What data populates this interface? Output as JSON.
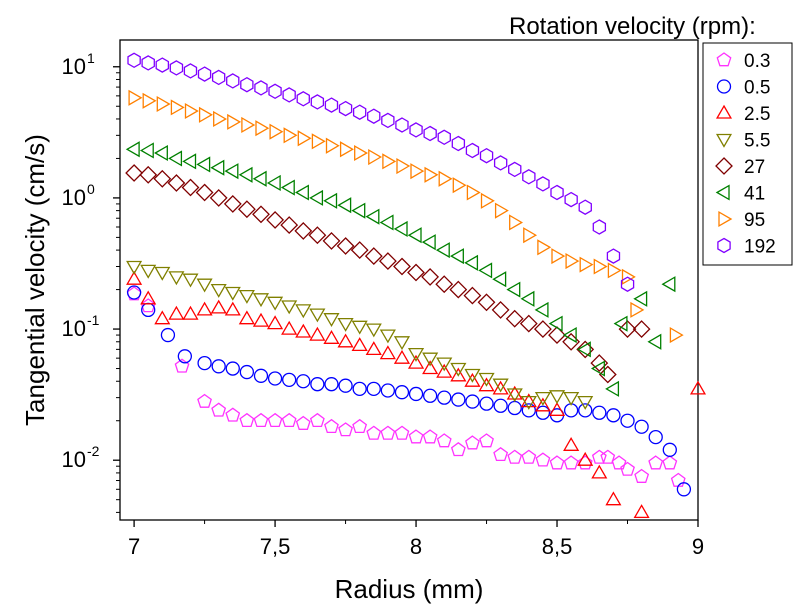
{
  "chart_data": {
    "type": "scatter",
    "title": "",
    "xlabel": "Radius (mm)",
    "ylabel": "Tangential velocity (cm/s)",
    "xlim": [
      6.95,
      9.0
    ],
    "ylim": [
      0.0035,
      16
    ],
    "yscale": "log",
    "grid": false,
    "x_ticks": [
      {
        "value": 7,
        "label": "7"
      },
      {
        "value": 7.5,
        "label": "7,5"
      },
      {
        "value": 8,
        "label": "8"
      },
      {
        "value": 8.5,
        "label": "8,5"
      },
      {
        "value": 9,
        "label": "9"
      }
    ],
    "y_ticks": [
      {
        "value": 0.01,
        "base": "10",
        "exp": "-2"
      },
      {
        "value": 0.1,
        "base": "10",
        "exp": "-1"
      },
      {
        "value": 1,
        "base": "10",
        "exp": "0"
      },
      {
        "value": 10,
        "base": "10",
        "exp": "1"
      }
    ],
    "legend": {
      "title": "Rotation velocity (rpm):",
      "placement": "right"
    },
    "series": [
      {
        "name": "0.3",
        "marker": "pentagon",
        "color": "#ff33ff",
        "points": [
          [
            7,
            0.185
          ],
          [
            7.05,
            0.15
          ],
          [
            7.17,
            0.052
          ],
          [
            7.25,
            0.028
          ],
          [
            7.3,
            0.024
          ],
          [
            7.35,
            0.022
          ],
          [
            7.4,
            0.02
          ],
          [
            7.45,
            0.02
          ],
          [
            7.5,
            0.02
          ],
          [
            7.55,
            0.02
          ],
          [
            7.6,
            0.019
          ],
          [
            7.65,
            0.02
          ],
          [
            7.7,
            0.018
          ],
          [
            7.75,
            0.017
          ],
          [
            7.8,
            0.018
          ],
          [
            7.85,
            0.016
          ],
          [
            7.9,
            0.016
          ],
          [
            7.95,
            0.016
          ],
          [
            8.0,
            0.015
          ],
          [
            8.05,
            0.015
          ],
          [
            8.1,
            0.014
          ],
          [
            8.15,
            0.012
          ],
          [
            8.2,
            0.0135
          ],
          [
            8.25,
            0.014
          ],
          [
            8.3,
            0.011
          ],
          [
            8.35,
            0.0105
          ],
          [
            8.4,
            0.0105
          ],
          [
            8.45,
            0.01
          ],
          [
            8.5,
            0.0095
          ],
          [
            8.55,
            0.0095
          ],
          [
            8.6,
            0.0095
          ],
          [
            8.65,
            0.0105
          ],
          [
            8.68,
            0.0105
          ],
          [
            8.72,
            0.0095
          ],
          [
            8.75,
            0.0085
          ],
          [
            8.8,
            0.0075
          ],
          [
            8.85,
            0.0095
          ],
          [
            8.9,
            0.0095
          ],
          [
            8.93,
            0.007
          ]
        ]
      },
      {
        "name": "0.5",
        "marker": "circle",
        "color": "#0000ff",
        "points": [
          [
            7,
            0.19
          ],
          [
            7.05,
            0.14
          ],
          [
            7.12,
            0.09
          ],
          [
            7.18,
            0.062
          ],
          [
            7.25,
            0.055
          ],
          [
            7.3,
            0.052
          ],
          [
            7.35,
            0.05
          ],
          [
            7.4,
            0.047
          ],
          [
            7.45,
            0.044
          ],
          [
            7.5,
            0.042
          ],
          [
            7.55,
            0.041
          ],
          [
            7.6,
            0.04
          ],
          [
            7.65,
            0.038
          ],
          [
            7.7,
            0.038
          ],
          [
            7.75,
            0.037
          ],
          [
            7.8,
            0.035
          ],
          [
            7.85,
            0.035
          ],
          [
            7.9,
            0.034
          ],
          [
            7.95,
            0.033
          ],
          [
            8.0,
            0.032
          ],
          [
            8.05,
            0.031
          ],
          [
            8.1,
            0.03
          ],
          [
            8.15,
            0.029
          ],
          [
            8.2,
            0.028
          ],
          [
            8.25,
            0.027
          ],
          [
            8.3,
            0.026
          ],
          [
            8.35,
            0.025
          ],
          [
            8.4,
            0.024
          ],
          [
            8.45,
            0.023
          ],
          [
            8.5,
            0.022
          ],
          [
            8.55,
            0.024
          ],
          [
            8.6,
            0.024
          ],
          [
            8.65,
            0.023
          ],
          [
            8.7,
            0.022
          ],
          [
            8.75,
            0.02
          ],
          [
            8.8,
            0.018
          ],
          [
            8.85,
            0.015
          ],
          [
            8.9,
            0.012
          ],
          [
            8.95,
            0.006
          ]
        ]
      },
      {
        "name": "2.5",
        "marker": "triangle-up",
        "color": "#ff0000",
        "points": [
          [
            7,
            0.24
          ],
          [
            7.05,
            0.17
          ],
          [
            7.1,
            0.12
          ],
          [
            7.15,
            0.13
          ],
          [
            7.2,
            0.13
          ],
          [
            7.25,
            0.14
          ],
          [
            7.3,
            0.145
          ],
          [
            7.35,
            0.14
          ],
          [
            7.4,
            0.12
          ],
          [
            7.45,
            0.115
          ],
          [
            7.5,
            0.11
          ],
          [
            7.55,
            0.1
          ],
          [
            7.6,
            0.095
          ],
          [
            7.65,
            0.09
          ],
          [
            7.7,
            0.085
          ],
          [
            7.75,
            0.08
          ],
          [
            7.8,
            0.075
          ],
          [
            7.85,
            0.07
          ],
          [
            7.9,
            0.065
          ],
          [
            7.95,
            0.06
          ],
          [
            8.0,
            0.055
          ],
          [
            8.05,
            0.05
          ],
          [
            8.1,
            0.047
          ],
          [
            8.15,
            0.044
          ],
          [
            8.2,
            0.04
          ],
          [
            8.25,
            0.037
          ],
          [
            8.3,
            0.035
          ],
          [
            8.35,
            0.032
          ],
          [
            8.4,
            0.028
          ],
          [
            8.45,
            0.026
          ],
          [
            8.5,
            0.024
          ],
          [
            8.55,
            0.013
          ],
          [
            8.6,
            0.01
          ],
          [
            8.65,
            0.008
          ],
          [
            8.7,
            0.005
          ],
          [
            8.8,
            0.004
          ],
          [
            9.0,
            0.035
          ]
        ]
      },
      {
        "name": "5.5",
        "marker": "triangle-down",
        "color": "#808000",
        "points": [
          [
            7,
            0.3
          ],
          [
            7.05,
            0.28
          ],
          [
            7.1,
            0.27
          ],
          [
            7.15,
            0.25
          ],
          [
            7.2,
            0.24
          ],
          [
            7.25,
            0.22
          ],
          [
            7.3,
            0.2
          ],
          [
            7.35,
            0.19
          ],
          [
            7.4,
            0.18
          ],
          [
            7.45,
            0.17
          ],
          [
            7.5,
            0.16
          ],
          [
            7.55,
            0.15
          ],
          [
            7.6,
            0.14
          ],
          [
            7.65,
            0.13
          ],
          [
            7.7,
            0.12
          ],
          [
            7.75,
            0.11
          ],
          [
            7.8,
            0.105
          ],
          [
            7.85,
            0.1
          ],
          [
            7.9,
            0.09
          ],
          [
            7.95,
            0.08
          ],
          [
            8.0,
            0.065
          ],
          [
            8.05,
            0.06
          ],
          [
            8.1,
            0.055
          ],
          [
            8.15,
            0.05
          ],
          [
            8.2,
            0.045
          ],
          [
            8.25,
            0.042
          ],
          [
            8.3,
            0.038
          ],
          [
            8.35,
            0.032
          ],
          [
            8.4,
            0.028
          ],
          [
            8.45,
            0.03
          ],
          [
            8.5,
            0.031
          ],
          [
            8.55,
            0.03
          ],
          [
            8.6,
            0.028
          ]
        ]
      },
      {
        "name": "27",
        "marker": "diamond",
        "color": "#800000",
        "points": [
          [
            7,
            1.55
          ],
          [
            7.05,
            1.5
          ],
          [
            7.1,
            1.4
          ],
          [
            7.15,
            1.3
          ],
          [
            7.2,
            1.2
          ],
          [
            7.25,
            1.1
          ],
          [
            7.3,
            1.0
          ],
          [
            7.35,
            0.9
          ],
          [
            7.4,
            0.82
          ],
          [
            7.45,
            0.75
          ],
          [
            7.5,
            0.68
          ],
          [
            7.55,
            0.62
          ],
          [
            7.6,
            0.56
          ],
          [
            7.65,
            0.52
          ],
          [
            7.7,
            0.47
          ],
          [
            7.75,
            0.43
          ],
          [
            7.8,
            0.4
          ],
          [
            7.85,
            0.36
          ],
          [
            7.9,
            0.33
          ],
          [
            7.95,
            0.3
          ],
          [
            8.0,
            0.27
          ],
          [
            8.05,
            0.25
          ],
          [
            8.1,
            0.22
          ],
          [
            8.15,
            0.2
          ],
          [
            8.2,
            0.18
          ],
          [
            8.25,
            0.16
          ],
          [
            8.3,
            0.14
          ],
          [
            8.35,
            0.12
          ],
          [
            8.4,
            0.11
          ],
          [
            8.45,
            0.1
          ],
          [
            8.5,
            0.09
          ],
          [
            8.55,
            0.08
          ],
          [
            8.6,
            0.07
          ],
          [
            8.65,
            0.055
          ],
          [
            8.68,
            0.045
          ],
          [
            8.75,
            0.1
          ],
          [
            8.8,
            0.1
          ]
        ]
      },
      {
        "name": "41",
        "marker": "triangle-left",
        "color": "#008000",
        "points": [
          [
            7,
            2.35
          ],
          [
            7.05,
            2.3
          ],
          [
            7.1,
            2.2
          ],
          [
            7.15,
            2.0
          ],
          [
            7.2,
            1.9
          ],
          [
            7.25,
            1.8
          ],
          [
            7.3,
            1.7
          ],
          [
            7.35,
            1.6
          ],
          [
            7.4,
            1.5
          ],
          [
            7.45,
            1.4
          ],
          [
            7.5,
            1.3
          ],
          [
            7.55,
            1.2
          ],
          [
            7.6,
            1.1
          ],
          [
            7.65,
            1.0
          ],
          [
            7.7,
            0.95
          ],
          [
            7.75,
            0.88
          ],
          [
            7.8,
            0.8
          ],
          [
            7.85,
            0.72
          ],
          [
            7.9,
            0.65
          ],
          [
            7.95,
            0.58
          ],
          [
            8.0,
            0.52
          ],
          [
            8.05,
            0.46
          ],
          [
            8.1,
            0.4
          ],
          [
            8.15,
            0.36
          ],
          [
            8.2,
            0.32
          ],
          [
            8.25,
            0.28
          ],
          [
            8.3,
            0.24
          ],
          [
            8.35,
            0.2
          ],
          [
            8.4,
            0.17
          ],
          [
            8.45,
            0.14
          ],
          [
            8.5,
            0.11
          ],
          [
            8.55,
            0.09
          ],
          [
            8.6,
            0.07
          ],
          [
            8.65,
            0.05
          ],
          [
            8.7,
            0.035
          ],
          [
            8.73,
            0.11
          ],
          [
            8.8,
            0.17
          ],
          [
            8.85,
            0.08
          ],
          [
            8.9,
            0.22
          ]
        ]
      },
      {
        "name": "95",
        "marker": "triangle-right",
        "color": "#ff8000",
        "points": [
          [
            7,
            5.8
          ],
          [
            7.05,
            5.5
          ],
          [
            7.1,
            5.2
          ],
          [
            7.15,
            4.9
          ],
          [
            7.2,
            4.6
          ],
          [
            7.25,
            4.3
          ],
          [
            7.3,
            4.0
          ],
          [
            7.35,
            3.8
          ],
          [
            7.4,
            3.6
          ],
          [
            7.45,
            3.4
          ],
          [
            7.5,
            3.2
          ],
          [
            7.55,
            3.0
          ],
          [
            7.6,
            2.85
          ],
          [
            7.65,
            2.7
          ],
          [
            7.7,
            2.5
          ],
          [
            7.75,
            2.35
          ],
          [
            7.8,
            2.2
          ],
          [
            7.85,
            2.05
          ],
          [
            7.9,
            1.9
          ],
          [
            7.95,
            1.75
          ],
          [
            8.0,
            1.6
          ],
          [
            8.05,
            1.5
          ],
          [
            8.1,
            1.4
          ],
          [
            8.15,
            1.25
          ],
          [
            8.2,
            1.1
          ],
          [
            8.25,
            0.95
          ],
          [
            8.3,
            0.8
          ],
          [
            8.35,
            0.65
          ],
          [
            8.4,
            0.52
          ],
          [
            8.45,
            0.42
          ],
          [
            8.5,
            0.36
          ],
          [
            8.55,
            0.33
          ],
          [
            8.6,
            0.31
          ],
          [
            8.65,
            0.3
          ],
          [
            8.7,
            0.28
          ],
          [
            8.75,
            0.25
          ],
          [
            8.78,
            0.14
          ],
          [
            8.92,
            0.09
          ]
        ]
      },
      {
        "name": "192",
        "marker": "hexagon",
        "color": "#8000ff",
        "points": [
          [
            7,
            11.2
          ],
          [
            7.05,
            10.7
          ],
          [
            7.1,
            10.3
          ],
          [
            7.15,
            9.8
          ],
          [
            7.2,
            9.3
          ],
          [
            7.25,
            8.8
          ],
          [
            7.3,
            8.3
          ],
          [
            7.35,
            7.8
          ],
          [
            7.4,
            7.3
          ],
          [
            7.45,
            6.9
          ],
          [
            7.5,
            6.5
          ],
          [
            7.55,
            6.1
          ],
          [
            7.6,
            5.7
          ],
          [
            7.65,
            5.4
          ],
          [
            7.7,
            5.1
          ],
          [
            7.75,
            4.8
          ],
          [
            7.8,
            4.5
          ],
          [
            7.85,
            4.2
          ],
          [
            7.9,
            3.9
          ],
          [
            7.95,
            3.6
          ],
          [
            8.0,
            3.3
          ],
          [
            8.05,
            3.1
          ],
          [
            8.1,
            2.9
          ],
          [
            8.15,
            2.6
          ],
          [
            8.2,
            2.3
          ],
          [
            8.25,
            2.1
          ],
          [
            8.3,
            1.85
          ],
          [
            8.35,
            1.65
          ],
          [
            8.4,
            1.45
          ],
          [
            8.45,
            1.28
          ],
          [
            8.5,
            1.1
          ],
          [
            8.55,
            0.97
          ],
          [
            8.6,
            0.85
          ],
          [
            8.65,
            0.6
          ],
          [
            8.7,
            0.36
          ],
          [
            8.75,
            0.22
          ]
        ]
      }
    ]
  }
}
